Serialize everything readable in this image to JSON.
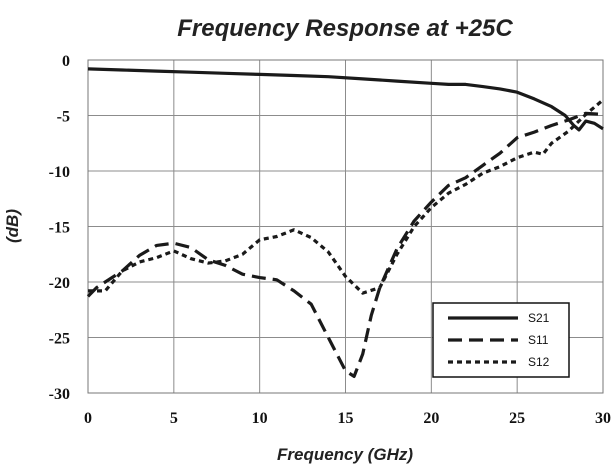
{
  "chart_data": {
    "type": "line",
    "title": "Frequency Response at +25C",
    "xlabel": "Frequency (GHz)",
    "ylabel": "(dB)",
    "xlim": [
      0,
      30
    ],
    "ylim": [
      -30,
      0
    ],
    "xticks": [
      0,
      5,
      10,
      15,
      20,
      25,
      30
    ],
    "yticks": [
      0,
      -5,
      -10,
      -15,
      -20,
      -25,
      -30
    ],
    "xtick_labels": [
      "0",
      "5",
      "10",
      "15",
      "20",
      "25",
      "30"
    ],
    "ytick_labels": [
      "0",
      "-5",
      "-10",
      "-15",
      "-20",
      "-25",
      "-30"
    ],
    "grid": true,
    "legend_position": "bottom-right",
    "series": [
      {
        "name": "S21",
        "style": "solid",
        "color": "#1a1a1a",
        "points": [
          [
            0,
            -0.8
          ],
          [
            2,
            -0.9
          ],
          [
            4,
            -1.0
          ],
          [
            6,
            -1.1
          ],
          [
            8,
            -1.2
          ],
          [
            10,
            -1.3
          ],
          [
            12,
            -1.4
          ],
          [
            14,
            -1.5
          ],
          [
            16,
            -1.7
          ],
          [
            18,
            -1.9
          ],
          [
            20,
            -2.1
          ],
          [
            21,
            -2.2
          ],
          [
            22,
            -2.2
          ],
          [
            23,
            -2.4
          ],
          [
            24,
            -2.6
          ],
          [
            25,
            -2.9
          ],
          [
            26,
            -3.5
          ],
          [
            27,
            -4.2
          ],
          [
            27.8,
            -5.0
          ],
          [
            28.3,
            -5.9
          ],
          [
            28.6,
            -6.3
          ],
          [
            29,
            -5.5
          ],
          [
            29.5,
            -5.7
          ],
          [
            30,
            -6.2
          ]
        ]
      },
      {
        "name": "S11",
        "style": "dashed",
        "color": "#1a1a1a",
        "points": [
          [
            0,
            -21.3
          ],
          [
            0.5,
            -20.5
          ],
          [
            1,
            -20.0
          ],
          [
            2,
            -19.0
          ],
          [
            3,
            -17.6
          ],
          [
            4,
            -16.7
          ],
          [
            5,
            -16.5
          ],
          [
            6,
            -16.9
          ],
          [
            7,
            -18.0
          ],
          [
            8,
            -18.5
          ],
          [
            9,
            -19.3
          ],
          [
            10,
            -19.6
          ],
          [
            11,
            -19.8
          ],
          [
            12,
            -20.8
          ],
          [
            13,
            -22.0
          ],
          [
            14,
            -25.0
          ],
          [
            15,
            -28.0
          ],
          [
            15.5,
            -28.5
          ],
          [
            16,
            -26.5
          ],
          [
            16.5,
            -23.0
          ],
          [
            17,
            -20.5
          ],
          [
            18,
            -17.0
          ],
          [
            19,
            -14.5
          ],
          [
            20,
            -12.8
          ],
          [
            21,
            -11.3
          ],
          [
            22,
            -10.6
          ],
          [
            23,
            -9.5
          ],
          [
            24,
            -8.4
          ],
          [
            25,
            -7.0
          ],
          [
            26,
            -6.5
          ],
          [
            27,
            -5.9
          ],
          [
            28,
            -5.4
          ],
          [
            29,
            -4.8
          ],
          [
            30,
            -4.9
          ]
        ]
      },
      {
        "name": "S12",
        "style": "dotted",
        "color": "#1a1a1a",
        "points": [
          [
            0,
            -20.8
          ],
          [
            1,
            -20.8
          ],
          [
            2,
            -19.0
          ],
          [
            3,
            -18.2
          ],
          [
            4,
            -17.8
          ],
          [
            5,
            -17.2
          ],
          [
            6,
            -17.9
          ],
          [
            7,
            -18.3
          ],
          [
            8,
            -18.1
          ],
          [
            9,
            -17.5
          ],
          [
            10,
            -16.2
          ],
          [
            11,
            -15.9
          ],
          [
            12,
            -15.3
          ],
          [
            13,
            -16.0
          ],
          [
            14,
            -17.3
          ],
          [
            15,
            -19.5
          ],
          [
            16,
            -21.0
          ],
          [
            17,
            -20.5
          ],
          [
            18,
            -17.5
          ],
          [
            19,
            -15.0
          ],
          [
            20,
            -13.3
          ],
          [
            21,
            -12.0
          ],
          [
            22,
            -11.2
          ],
          [
            23,
            -10.2
          ],
          [
            24,
            -9.6
          ],
          [
            25,
            -8.8
          ],
          [
            26,
            -8.3
          ],
          [
            26.5,
            -8.5
          ],
          [
            27,
            -7.5
          ],
          [
            28,
            -6.4
          ],
          [
            29,
            -4.9
          ],
          [
            30,
            -3.6
          ]
        ]
      }
    ]
  }
}
